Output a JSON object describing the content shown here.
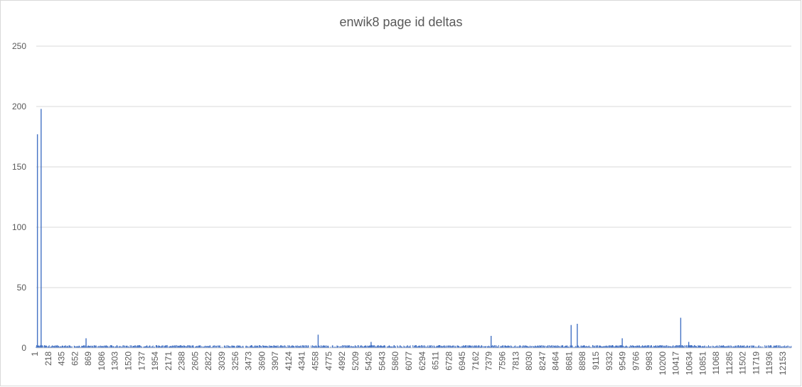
{
  "chart_data": {
    "type": "bar",
    "title": "enwik8 page id deltas",
    "xlabel": "",
    "ylabel": "",
    "ylim": [
      0,
      250
    ],
    "y_ticks": [
      "0",
      "50",
      "100",
      "150",
      "200",
      "250"
    ],
    "x_range": [
      1,
      12267
    ],
    "x_tick_labels": [
      "1",
      "218",
      "435",
      "652",
      "869",
      "1086",
      "1303",
      "1520",
      "1737",
      "1954",
      "2171",
      "2388",
      "2605",
      "2822",
      "3039",
      "3256",
      "3473",
      "3690",
      "3907",
      "4124",
      "4341",
      "4558",
      "4775",
      "4992",
      "5209",
      "5426",
      "5643",
      "5860",
      "6077",
      "6294",
      "6511",
      "6728",
      "6945",
      "7162",
      "7379",
      "7596",
      "7813",
      "8030",
      "8247",
      "8464",
      "8681",
      "8898",
      "9115",
      "9332",
      "9549",
      "9766",
      "9983",
      "10200",
      "10417",
      "10634",
      "10851",
      "11068",
      "11285",
      "11502",
      "11719",
      "11936",
      "12153"
    ],
    "grid": true,
    "legend": "none",
    "baseline_value": 2,
    "notable_values": [
      {
        "x": 20,
        "y": 177
      },
      {
        "x": 80,
        "y": 198
      },
      {
        "x": 810,
        "y": 8
      },
      {
        "x": 4580,
        "y": 11
      },
      {
        "x": 5440,
        "y": 5
      },
      {
        "x": 7390,
        "y": 10
      },
      {
        "x": 8690,
        "y": 19
      },
      {
        "x": 8790,
        "y": 20
      },
      {
        "x": 9520,
        "y": 8
      },
      {
        "x": 10470,
        "y": 25
      },
      {
        "x": 10600,
        "y": 5
      }
    ],
    "series_color": "#4472c4"
  }
}
